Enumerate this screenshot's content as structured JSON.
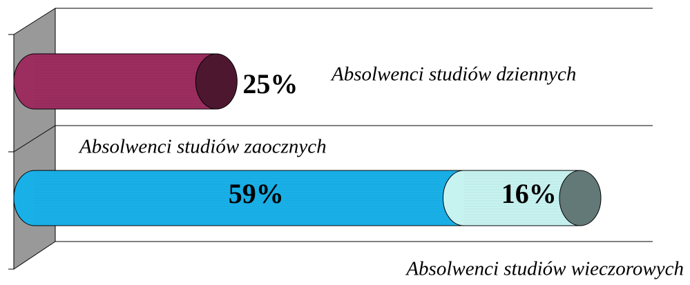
{
  "chart_data": {
    "type": "bar",
    "orientation": "horizontal",
    "stacked": true,
    "grid": true,
    "categories": [
      null,
      null
    ],
    "series": [
      {
        "name": "Absolwenci studiów dziennych",
        "color": "#9b2d5f",
        "values": [
          25,
          null
        ],
        "value_labels": [
          "25%",
          null
        ]
      },
      {
        "name": "Absolwenci studiów zaocznych",
        "color": "#19b0e8",
        "values": [
          null,
          59
        ],
        "value_labels": [
          null,
          "59%"
        ]
      },
      {
        "name": "Absolwenci studiów wieczorowych",
        "color": "#c6f2f0",
        "values": [
          null,
          16
        ],
        "value_labels": [
          null,
          "16%"
        ]
      }
    ]
  }
}
